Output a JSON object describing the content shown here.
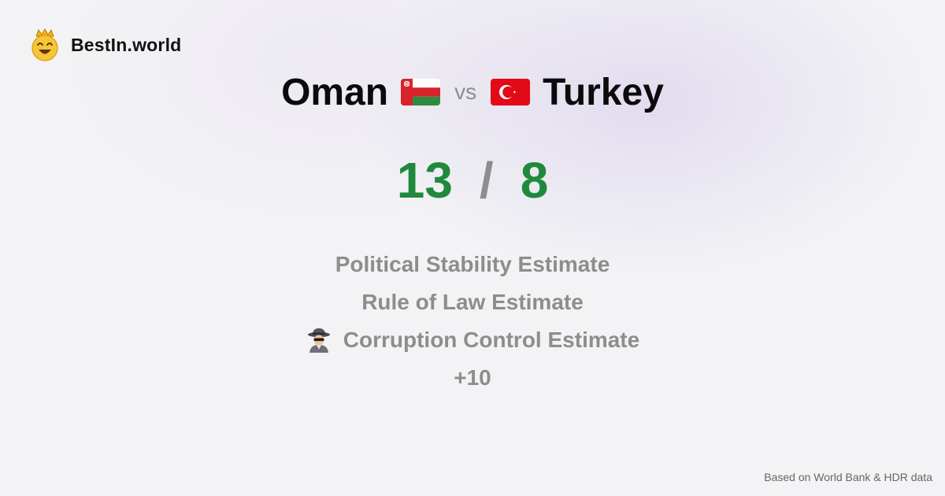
{
  "brand": {
    "name": "BestIn.world",
    "logo_icon": "crown-smiley-icon"
  },
  "comparison": {
    "left_country": "Oman",
    "left_flag_icon": "oman-flag-icon",
    "separator": "vs",
    "right_country": "Turkey",
    "right_flag_icon": "turkey-flag-icon"
  },
  "score": {
    "left": "13",
    "separator": "/",
    "right": "8",
    "color": "#1f8a3c"
  },
  "metrics": [
    {
      "label": "Political Stability Estimate"
    },
    {
      "label": "Rule of Law Estimate"
    },
    {
      "label": "Corruption Control Estimate",
      "icon": "detective-icon"
    },
    {
      "label": "+10"
    }
  ],
  "footer": {
    "source": "Based on World Bank & HDR data"
  },
  "colors": {
    "score_green": "#1f8a3c",
    "muted_gray": "#8d8d8d",
    "title_black": "#0b0b0b"
  }
}
